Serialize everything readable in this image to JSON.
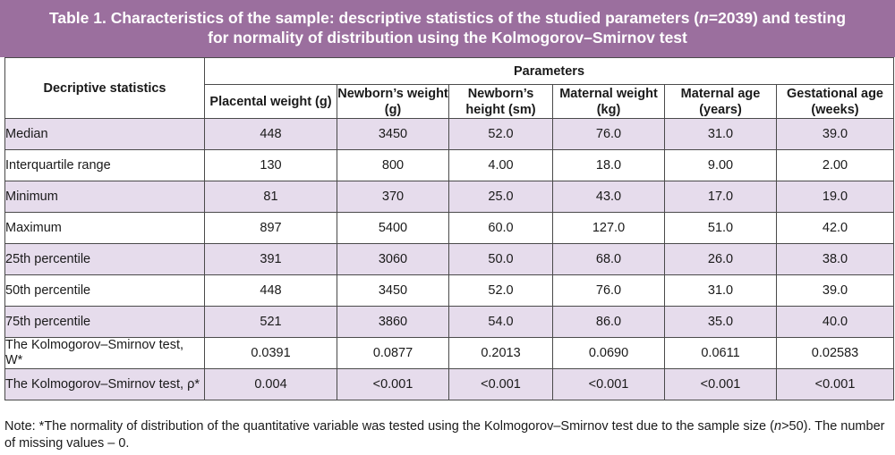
{
  "title": {
    "line1_a": "Table 1. Characteristics of the sample: descriptive statistics of the studied parameters (",
    "line1_n": "n",
    "line1_b": "=2039) and testing",
    "line2": "for normality of distribution using the Kolmogorov–Smirnov test"
  },
  "header": {
    "stats_label": "Decriptive statistics",
    "parameters_label": "Parameters",
    "columns": [
      "Placental weight (g)",
      "Newborn’s weight  (g)",
      "Newborn’s height (sm)",
      "Maternal weight  (kg)",
      "Maternal age (years)",
      "Gestational age (weeks)"
    ]
  },
  "rows": [
    {
      "label": "Median",
      "values": [
        "448",
        "3450",
        "52.0",
        "76.0",
        "31.0",
        "39.0"
      ]
    },
    {
      "label": "Interquartile range",
      "values": [
        "130",
        "800",
        "4.00",
        "18.0",
        "9.00",
        "2.00"
      ]
    },
    {
      "label": "Minimum",
      "values": [
        "81",
        "370",
        "25.0",
        "43.0",
        "17.0",
        "19.0"
      ]
    },
    {
      "label": "Maximum",
      "values": [
        "897",
        "5400",
        "60.0",
        "127.0",
        "51.0",
        "42.0"
      ]
    },
    {
      "label": "25th percentile",
      "values": [
        "391",
        "3060",
        "50.0",
        "68.0",
        "26.0",
        "38.0"
      ]
    },
    {
      "label": "50th percentile",
      "values": [
        "448",
        "3450",
        "52.0",
        "76.0",
        "31.0",
        "39.0"
      ]
    },
    {
      "label": "75th percentile",
      "values": [
        "521",
        "3860",
        "54.0",
        "86.0",
        "35.0",
        "40.0"
      ]
    },
    {
      "label": "The Kolmogorov–Smirnov test, W*",
      "values": [
        "0.0391",
        "0.0877",
        "0.2013",
        "0.0690",
        "0.0611",
        "0.02583"
      ]
    },
    {
      "label": "The Kolmogorov–Smirnov test, ρ*",
      "values": [
        "0.004",
        "<0.001",
        "<0.001",
        "<0.001",
        "<0.001",
        "<0.001"
      ]
    }
  ],
  "note": {
    "part1": "Note: *The normality of distribution of the quantitative variable was tested using the Kolmogorov–Smirnov test due to the sample size (",
    "n": "n",
    "part2": ">50). The number of missing values – 0."
  },
  "colors": {
    "title_bg": "#9b6f9e",
    "shaded_row": "#e6dcec",
    "border": "#4a4a4a"
  }
}
